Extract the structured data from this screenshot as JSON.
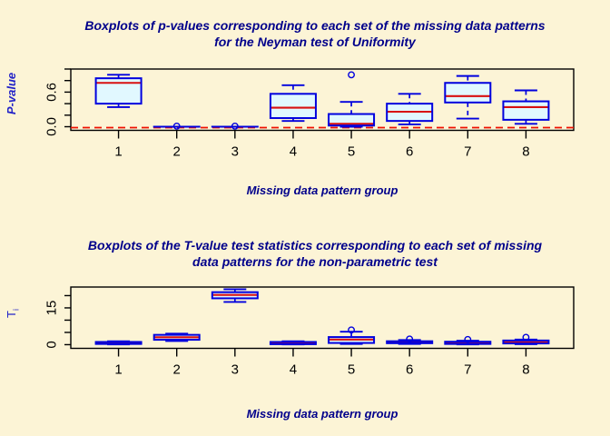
{
  "figure": {
    "background": "#FCF4D6",
    "colors": {
      "title": "#00008B",
      "axis_label": "#2323C8",
      "tick_text": "#000000",
      "frame": "#000000",
      "box_border": "#0000DE",
      "box_fill": "#E1F8FF",
      "median": "#D81010",
      "ref_line": "#EE1100",
      "outlier": "#0000DE"
    }
  },
  "chart_data": [
    {
      "type": "boxplot",
      "title_lines": [
        "Boxplots of p-values corresponding to each set of the missing data patterns",
        "for the Neyman test of Uniformity"
      ],
      "ylabel": "P-value",
      "xlabel": "Missing data pattern group",
      "categories": [
        "1",
        "2",
        "3",
        "4",
        "5",
        "6",
        "7",
        "8"
      ],
      "xlim": [
        0.18,
        8.82
      ],
      "ylim": [
        -0.063,
        1.0
      ],
      "yticks": [
        0,
        0.2,
        0.4,
        0.6,
        0.8,
        1.0
      ],
      "ytick_labels": {
        "0": "0.0",
        "0.6": "0.6"
      },
      "grid": false,
      "legend": null,
      "ref_line_y": 0,
      "boxes": [
        {
          "group": "1",
          "low": 0.34,
          "q1": 0.4,
          "median": 0.76,
          "q3": 0.84,
          "high": 0.9,
          "outliers": []
        },
        {
          "group": "2",
          "low": 0.0,
          "q1": 0.0,
          "median": 0.0,
          "q3": 0.0,
          "high": 0.0,
          "outliers": [
            0.01
          ]
        },
        {
          "group": "3",
          "low": 0.0,
          "q1": 0.0,
          "median": 0.0,
          "q3": 0.0,
          "high": 0.0,
          "outliers": [
            0.01
          ]
        },
        {
          "group": "4",
          "low": 0.1,
          "q1": 0.15,
          "median": 0.33,
          "q3": 0.57,
          "high": 0.72,
          "outliers": []
        },
        {
          "group": "5",
          "low": 0.0,
          "q1": 0.02,
          "median": 0.05,
          "q3": 0.22,
          "high": 0.43,
          "outliers": [
            0.9
          ]
        },
        {
          "group": "6",
          "low": 0.04,
          "q1": 0.1,
          "median": 0.26,
          "q3": 0.4,
          "high": 0.57,
          "outliers": []
        },
        {
          "group": "7",
          "low": 0.14,
          "q1": 0.42,
          "median": 0.53,
          "q3": 0.76,
          "high": 0.88,
          "outliers": []
        },
        {
          "group": "8",
          "low": 0.05,
          "q1": 0.12,
          "median": 0.34,
          "q3": 0.44,
          "high": 0.63,
          "outliers": []
        }
      ]
    },
    {
      "type": "boxplot",
      "title_lines": [
        "Boxplots of the T-value test statistics corresponding to each set of missing",
        "data patterns for the non-parametric test"
      ],
      "ylabel": "T",
      "ylabel_sub": "i",
      "xlabel": "Missing data pattern group",
      "categories": [
        "1",
        "2",
        "3",
        "4",
        "5",
        "6",
        "7",
        "8"
      ],
      "xlim": [
        0.18,
        8.82
      ],
      "ylim": [
        -1.5,
        23.5
      ],
      "yticks": [
        0,
        5,
        10,
        15,
        20
      ],
      "ytick_labels": {
        "0": "0",
        "15": "15"
      },
      "grid": false,
      "legend": null,
      "ref_line_y": null,
      "boxes": [
        {
          "group": "1",
          "low": 0.1,
          "q1": 0.3,
          "median": 0.7,
          "q3": 1.1,
          "high": 1.4,
          "outliers": []
        },
        {
          "group": "2",
          "low": 1.5,
          "q1": 2.0,
          "median": 3.0,
          "q3": 4.0,
          "high": 4.5,
          "outliers": []
        },
        {
          "group": "3",
          "low": 17.4,
          "q1": 18.9,
          "median": 20.3,
          "q3": 21.4,
          "high": 22.6,
          "outliers": []
        },
        {
          "group": "4",
          "low": 0.1,
          "q1": 0.2,
          "median": 0.6,
          "q3": 1.1,
          "high": 1.4,
          "outliers": []
        },
        {
          "group": "5",
          "low": 0.3,
          "q1": 0.7,
          "median": 2.1,
          "q3": 3.1,
          "high": 5.3,
          "outliers": [
            6.0
          ]
        },
        {
          "group": "6",
          "low": 0.3,
          "q1": 0.6,
          "median": 1.0,
          "q3": 1.4,
          "high": 1.9,
          "outliers": [
            2.3
          ]
        },
        {
          "group": "7",
          "low": 0.1,
          "q1": 0.3,
          "median": 0.7,
          "q3": 1.2,
          "high": 1.6,
          "outliers": [
            2.1
          ]
        },
        {
          "group": "8",
          "low": 0.2,
          "q1": 0.5,
          "median": 1.0,
          "q3": 1.7,
          "high": 2.1,
          "outliers": [
            3.0
          ]
        }
      ]
    }
  ]
}
